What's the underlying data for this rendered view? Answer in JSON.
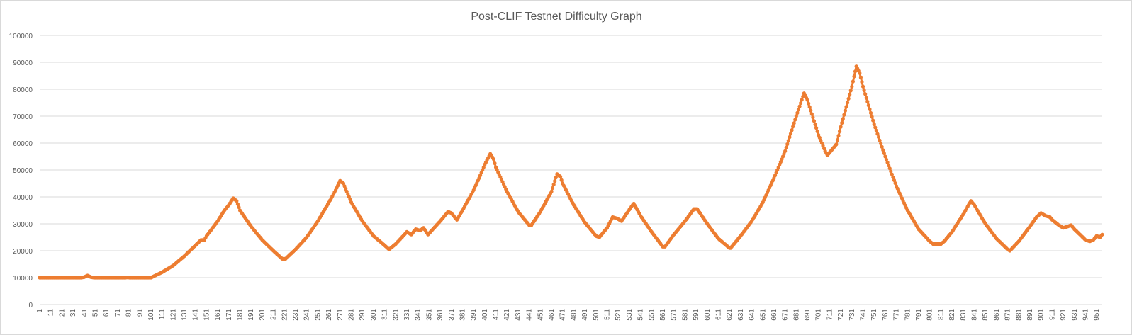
{
  "chart_data": {
    "type": "line",
    "title": "Post-CLIF Testnet Difficulty Graph",
    "xlabel": "",
    "ylabel": "",
    "ylim": [
      0,
      100000
    ],
    "xlim": [
      1,
      956
    ],
    "grid": true,
    "legend": "none",
    "y_ticks": [
      "0",
      "10000",
      "20000",
      "30000",
      "40000",
      "50000",
      "60000",
      "70000",
      "80000",
      "90000",
      "100000"
    ],
    "x_ticks": [
      "1",
      "11",
      "21",
      "31",
      "41",
      "51",
      "61",
      "71",
      "81",
      "91",
      "101",
      "111",
      "121",
      "131",
      "141",
      "151",
      "161",
      "171",
      "181",
      "191",
      "201",
      "211",
      "221",
      "231",
      "241",
      "251",
      "261",
      "271",
      "281",
      "291",
      "301",
      "311",
      "321",
      "331",
      "341",
      "351",
      "361",
      "371",
      "381",
      "391",
      "401",
      "411",
      "421",
      "431",
      "441",
      "451",
      "461",
      "471",
      "481",
      "491",
      "501",
      "511",
      "521",
      "531",
      "541",
      "551",
      "561",
      "571",
      "581",
      "591",
      "601",
      "611",
      "621",
      "631",
      "641",
      "651",
      "661",
      "671",
      "681",
      "691",
      "701",
      "711",
      "721",
      "731",
      "741",
      "751",
      "761",
      "771",
      "781",
      "791",
      "801",
      "811",
      "821",
      "831",
      "841",
      "851",
      "861",
      "871",
      "881",
      "891",
      "901",
      "911",
      "921",
      "931",
      "941",
      "951"
    ],
    "series": [
      {
        "color": "#ed7d31",
        "points": [
          [
            1,
            10000
          ],
          [
            38,
            10000
          ],
          [
            41,
            10200
          ],
          [
            44,
            10800
          ],
          [
            47,
            10200
          ],
          [
            50,
            10000
          ],
          [
            78,
            10000
          ],
          [
            80,
            10100
          ],
          [
            82,
            10000
          ],
          [
            101,
            10000
          ],
          [
            106,
            11000
          ],
          [
            111,
            12000
          ],
          [
            121,
            14500
          ],
          [
            131,
            18000
          ],
          [
            141,
            22000
          ],
          [
            146,
            24000
          ],
          [
            149,
            24000
          ],
          [
            151,
            25500
          ],
          [
            161,
            31000
          ],
          [
            167,
            35000
          ],
          [
            171,
            37000
          ],
          [
            175,
            39500
          ],
          [
            178,
            38500
          ],
          [
            181,
            35000
          ],
          [
            191,
            29000
          ],
          [
            201,
            24000
          ],
          [
            211,
            20000
          ],
          [
            219,
            17000
          ],
          [
            222,
            17000
          ],
          [
            231,
            20500
          ],
          [
            241,
            25000
          ],
          [
            251,
            31000
          ],
          [
            261,
            38000
          ],
          [
            267,
            42500
          ],
          [
            271,
            46000
          ],
          [
            274,
            45000
          ],
          [
            281,
            38000
          ],
          [
            291,
            31000
          ],
          [
            301,
            25500
          ],
          [
            311,
            22000
          ],
          [
            315,
            20500
          ],
          [
            321,
            22500
          ],
          [
            331,
            27000
          ],
          [
            335,
            26000
          ],
          [
            339,
            28000
          ],
          [
            343,
            27500
          ],
          [
            346,
            28500
          ],
          [
            350,
            26000
          ],
          [
            361,
            31000
          ],
          [
            368,
            34500
          ],
          [
            371,
            34000
          ],
          [
            376,
            31500
          ],
          [
            381,
            35000
          ],
          [
            391,
            42500
          ],
          [
            396,
            47000
          ],
          [
            401,
            52000
          ],
          [
            406,
            56000
          ],
          [
            409,
            54000
          ],
          [
            411,
            51000
          ],
          [
            421,
            42000
          ],
          [
            431,
            34500
          ],
          [
            441,
            29500
          ],
          [
            443,
            29500
          ],
          [
            451,
            34500
          ],
          [
            461,
            42000
          ],
          [
            466,
            48500
          ],
          [
            469,
            47500
          ],
          [
            471,
            45000
          ],
          [
            481,
            37000
          ],
          [
            491,
            30500
          ],
          [
            501,
            25500
          ],
          [
            504,
            25000
          ],
          [
            511,
            28500
          ],
          [
            516,
            32500
          ],
          [
            520,
            32000
          ],
          [
            524,
            31000
          ],
          [
            528,
            33500
          ],
          [
            533,
            36500
          ],
          [
            535,
            37500
          ],
          [
            537,
            36000
          ],
          [
            541,
            33000
          ],
          [
            551,
            27000
          ],
          [
            561,
            21500
          ],
          [
            563,
            21500
          ],
          [
            571,
            26000
          ],
          [
            581,
            31000
          ],
          [
            589,
            35500
          ],
          [
            592,
            35500
          ],
          [
            601,
            30000
          ],
          [
            611,
            24500
          ],
          [
            621,
            21000
          ],
          [
            622,
            21000
          ],
          [
            631,
            25500
          ],
          [
            641,
            31000
          ],
          [
            651,
            38000
          ],
          [
            661,
            47000
          ],
          [
            671,
            57000
          ],
          [
            681,
            70000
          ],
          [
            688,
            78500
          ],
          [
            691,
            76000
          ],
          [
            701,
            63000
          ],
          [
            707,
            57000
          ],
          [
            709,
            55500
          ],
          [
            712,
            57000
          ],
          [
            717,
            59500
          ],
          [
            721,
            66000
          ],
          [
            731,
            81000
          ],
          [
            735,
            88500
          ],
          [
            738,
            86000
          ],
          [
            741,
            81000
          ],
          [
            751,
            67000
          ],
          [
            761,
            55000
          ],
          [
            771,
            44000
          ],
          [
            781,
            35000
          ],
          [
            791,
            28000
          ],
          [
            801,
            23500
          ],
          [
            804,
            22500
          ],
          [
            811,
            22500
          ],
          [
            814,
            23500
          ],
          [
            821,
            27000
          ],
          [
            831,
            33500
          ],
          [
            838,
            38500
          ],
          [
            841,
            37000
          ],
          [
            851,
            30000
          ],
          [
            861,
            24500
          ],
          [
            871,
            20500
          ],
          [
            873,
            20000
          ],
          [
            881,
            23500
          ],
          [
            891,
            29000
          ],
          [
            897,
            32500
          ],
          [
            901,
            34000
          ],
          [
            905,
            33000
          ],
          [
            909,
            32500
          ],
          [
            911,
            31500
          ],
          [
            917,
            29500
          ],
          [
            921,
            28500
          ],
          [
            925,
            29000
          ],
          [
            928,
            29500
          ],
          [
            931,
            28000
          ],
          [
            941,
            24000
          ],
          [
            945,
            23500
          ],
          [
            948,
            24000
          ],
          [
            951,
            25500
          ],
          [
            954,
            25000
          ],
          [
            956,
            26000
          ]
        ]
      }
    ]
  }
}
